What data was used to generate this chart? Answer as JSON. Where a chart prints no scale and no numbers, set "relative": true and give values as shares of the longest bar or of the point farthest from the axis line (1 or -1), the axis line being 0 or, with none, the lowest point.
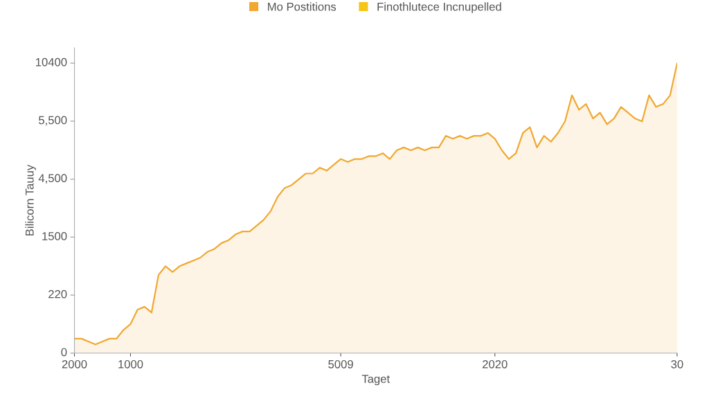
{
  "chart_data": {
    "type": "area",
    "xlabel": "Taget",
    "ylabel": "Bilicorn Tauuy",
    "relative": true,
    "annotations": [
      "0",
      "220",
      "1500",
      "4,500",
      "5,500",
      "10400"
    ],
    "categories": [
      "2000",
      null,
      null,
      null,
      null,
      null,
      null,
      null,
      "1000",
      null,
      null,
      null,
      null,
      null,
      null,
      null,
      null,
      null,
      null,
      null,
      null,
      null,
      null,
      null,
      null,
      null,
      null,
      null,
      null,
      null,
      null,
      null,
      null,
      null,
      null,
      null,
      null,
      null,
      "5009",
      null,
      null,
      null,
      null,
      null,
      null,
      null,
      null,
      null,
      null,
      null,
      null,
      null,
      null,
      null,
      null,
      null,
      null,
      null,
      null,
      null,
      "2020",
      null,
      null,
      null,
      null,
      null,
      null,
      null,
      null,
      null,
      null,
      null,
      null,
      null,
      null,
      null,
      null,
      null,
      null,
      null,
      null,
      null,
      null,
      null,
      null,
      null,
      "30"
    ],
    "series": [
      {
        "name": "Mo Postitions",
        "color": "#f0a830",
        "values": [
          0.05,
          0.05,
          0.04,
          0.03,
          0.04,
          0.05,
          0.05,
          0.08,
          0.1,
          0.15,
          0.16,
          0.14,
          0.27,
          0.3,
          0.28,
          0.3,
          0.31,
          0.32,
          0.33,
          0.35,
          0.36,
          0.38,
          0.39,
          0.41,
          0.42,
          0.42,
          0.44,
          0.46,
          0.49,
          0.54,
          0.57,
          0.58,
          0.6,
          0.62,
          0.62,
          0.64,
          0.63,
          0.65,
          0.67,
          0.66,
          0.67,
          0.67,
          0.68,
          0.68,
          0.69,
          0.67,
          0.7,
          0.71,
          0.7,
          0.71,
          0.7,
          0.71,
          0.71,
          0.75,
          0.74,
          0.75,
          0.74,
          0.75,
          0.75,
          0.76,
          0.74,
          0.7,
          0.67,
          0.69,
          0.76,
          0.78,
          0.71,
          0.75,
          0.73,
          0.76,
          0.8,
          0.89,
          0.84,
          0.86,
          0.81,
          0.83,
          0.79,
          0.81,
          0.85,
          0.83,
          0.81,
          0.8,
          0.89,
          0.85,
          0.86,
          0.89,
          1
        ]
      },
      {
        "name": "Finothlutece Incnupelled",
        "color": "#f5c518",
        "values": [
          null,
          null,
          null,
          null,
          null,
          null,
          null,
          null,
          null,
          null,
          null,
          null,
          null,
          null,
          null,
          null,
          null,
          null,
          null,
          null,
          null,
          null,
          null,
          null,
          null,
          null,
          null,
          null,
          null,
          null,
          null,
          null,
          null,
          null,
          null,
          null,
          null,
          null,
          null,
          null,
          null,
          null,
          null,
          null,
          null,
          null,
          null,
          null,
          null,
          null,
          null,
          null,
          null,
          null,
          null,
          null,
          null,
          null,
          null,
          null,
          null,
          null,
          null,
          null,
          null,
          null,
          null,
          null,
          null,
          null,
          null,
          null,
          null,
          null,
          null,
          null,
          null,
          null,
          null,
          null,
          null,
          null,
          null,
          null,
          null,
          null,
          null
        ]
      }
    ],
    "legend": "top"
  }
}
